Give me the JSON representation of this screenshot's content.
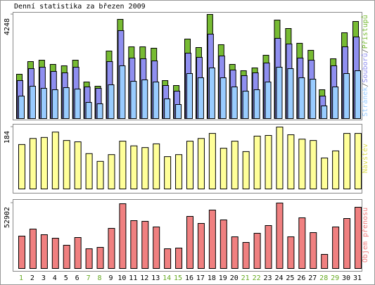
{
  "chart_data": [
    {
      "type": "bar",
      "title": "Denní statistika za březen 2009",
      "legend_separator": "/",
      "ylim": [
        0,
        4248
      ],
      "yticks": [
        4248
      ],
      "series": [
        {
          "name": "Stránek",
          "color": "#99ccff",
          "values": [
            918,
            1320,
            1234,
            1177,
            1263,
            1205,
            660,
            603,
            1378,
            2153,
            1521,
            1579,
            1492,
            804,
            574,
            1837,
            1665,
            2066,
            1665,
            1292,
            1119,
            1177,
            1492,
            2095,
            2038,
            1665,
            1607,
            517,
            1292,
            1837,
            1952
          ]
        },
        {
          "name": "Souborů",
          "color": "#8f8ff0",
          "values": [
            1550,
            2038,
            2095,
            1923,
            1866,
            2095,
            1292,
            1234,
            2325,
            3588,
            2468,
            2440,
            2353,
            1349,
            1119,
            2669,
            2497,
            3444,
            2554,
            1980,
            1751,
            1866,
            2267,
            3272,
            3042,
            2468,
            2382,
            918,
            2153,
            2927,
            3329
          ]
        },
        {
          "name": "Přístupů",
          "color": "#77bb33",
          "values": [
            1808,
            2325,
            2382,
            2210,
            2153,
            2382,
            1492,
            1320,
            2755,
            4047,
            2927,
            2927,
            2870,
            1550,
            1349,
            3243,
            2899,
            4248,
            3014,
            2210,
            1952,
            2066,
            2583,
            4018,
            3674,
            3071,
            2784,
            1177,
            2440,
            3501,
            3961
          ]
        }
      ]
    },
    {
      "type": "bar",
      "ylim": [
        0,
        184
      ],
      "yticks": [
        184
      ],
      "series": [
        {
          "name": "Návštěv",
          "color": "#ffff99",
          "values": [
            132,
            150,
            153,
            169,
            144,
            140,
            105,
            82,
            102,
            142,
            128,
            123,
            134,
            96,
            102,
            142,
            150,
            165,
            121,
            142,
            111,
            157,
            159,
            184,
            161,
            148,
            144,
            92,
            113,
            165,
            165
          ]
        }
      ]
    },
    {
      "type": "bar",
      "ylim": [
        0,
        52902
      ],
      "yticks": [
        52902
      ],
      "categories": [
        "1",
        "2",
        "3",
        "4",
        "5",
        "6",
        "7",
        "8",
        "9",
        "10",
        "11",
        "12",
        "13",
        "14",
        "15",
        "16",
        "17",
        "18",
        "19",
        "20",
        "21",
        "22",
        "23",
        "24",
        "25",
        "26",
        "27",
        "28",
        "29",
        "30",
        "31"
      ],
      "weekend": [
        true,
        false,
        false,
        false,
        false,
        false,
        true,
        true,
        false,
        false,
        false,
        false,
        false,
        true,
        true,
        false,
        false,
        false,
        false,
        false,
        true,
        true,
        false,
        false,
        false,
        false,
        false,
        true,
        true,
        false,
        false
      ],
      "weekend_color": "#66aa22",
      "weekday_color": "#000000",
      "series": [
        {
          "name": "Objem přenosu",
          "color": "#f08080",
          "values": [
            26165,
            31853,
            27303,
            24459,
            18771,
            25028,
            15927,
            17065,
            32423,
            52331,
            38679,
            38111,
            33560,
            15927,
            16496,
            42093,
            36405,
            47212,
            39249,
            25597,
            21046,
            28441,
            34698,
            52902,
            25597,
            40955,
            29010,
            11377,
            33560,
            40386,
            49487
          ]
        }
      ]
    }
  ]
}
